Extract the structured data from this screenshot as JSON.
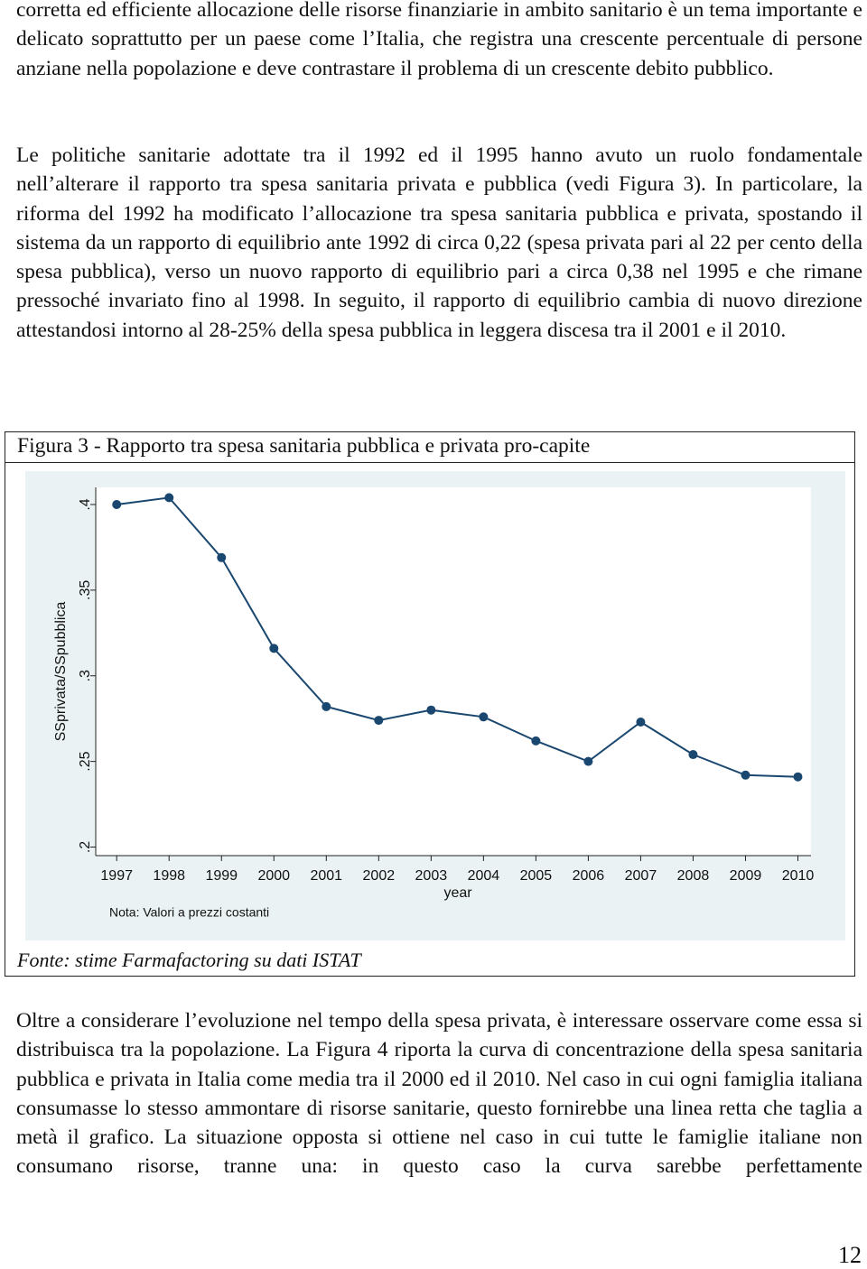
{
  "paragraphs": [
    "corretta ed efficiente allocazione delle risorse finanziarie in ambito sanitario è un tema importante e delicato soprattutto per un paese come l’Italia, che registra una crescente percentuale di persone anziane nella popolazione e deve contrastare il problema di un crescente debito pubblico.",
    "Le politiche sanitarie adottate tra il 1992 ed il 1995 hanno avuto un ruolo fondamentale nell’alterare il rapporto tra spesa sanitaria privata e pubblica (vedi Figura 3). In particolare, la riforma del 1992 ha modificato l’allocazione tra spesa sanitaria pubblica e privata, spostando il sistema da un rapporto di equilibrio ante 1992 di circa 0,22 (spesa privata pari al 22 per cento della spesa pubblica), verso un nuovo rapporto di equilibrio pari a circa 0,38 nel 1995 e che rimane pressoché invariato fino al 1998. In seguito, il rapporto di equilibrio cambia di nuovo direzione attestandosi intorno al 28-25% della spesa pubblica in leggera discesa tra il 2001 e il 2010.",
    "Oltre a considerare l’evoluzione nel tempo della spesa privata, è interessare osservare come essa si distribuisca tra la popolazione. La Figura 4 riporta la curva di concentrazione della spesa sanitaria pubblica e privata in Italia come media tra il 2000 ed il 2010. Nel caso in cui ogni famiglia italiana consumasse lo stesso ammontare di risorse sanitarie, questo fornirebbe una linea retta che taglia a metà il grafico. La situazione opposta si ottiene nel caso in cui tutte le famiglie italiane non consumano risorse, tranne una: in questo caso la curva sarebbe perfettamente"
  ],
  "figure": {
    "caption": "Figura 3 - Rapporto tra spesa sanitaria pubblica e privata pro-capite",
    "source": "Fonte: stime Farmafactoring su dati  ISTAT"
  },
  "chart_data": {
    "type": "line",
    "x": [
      1997,
      1998,
      1999,
      2000,
      2001,
      2002,
      2003,
      2004,
      2005,
      2006,
      2007,
      2008,
      2009,
      2010
    ],
    "values": [
      0.4,
      0.404,
      0.369,
      0.316,
      0.282,
      0.274,
      0.28,
      0.276,
      0.262,
      0.25,
      0.273,
      0.254,
      0.242,
      0.241
    ],
    "color": "#1a476f",
    "xlim": [
      1996.6,
      2010.25
    ],
    "xticks": [
      1997,
      1998,
      1999,
      2000,
      2001,
      2002,
      2003,
      2004,
      2005,
      2006,
      2007,
      2008,
      2009,
      2010
    ],
    "ylim": [
      0.195,
      0.41
    ],
    "yticks": [
      {
        "value": 0.2,
        "label": ".2"
      },
      {
        "value": 0.25,
        "label": ".25"
      },
      {
        "value": 0.3,
        "label": ".3"
      },
      {
        "value": 0.35,
        "label": ".35"
      },
      {
        "value": 0.4,
        "label": ".4"
      }
    ],
    "x_label": "year",
    "y_label": "SSprivata/SSpubblica",
    "note": "Nota: Valori a prezzi costanti",
    "grid": false
  },
  "page_number": "12"
}
